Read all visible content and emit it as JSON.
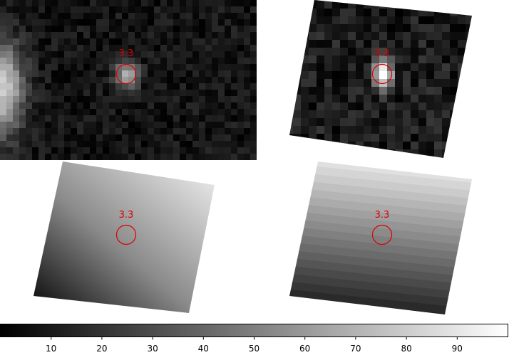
{
  "colors": {
    "marker": "#dd0000",
    "background": "#ffffff"
  },
  "panels": [
    {
      "name": "top-left",
      "shape": "noise-cutout",
      "peak": 0.62,
      "marker_label": "3.3"
    },
    {
      "name": "top-right",
      "shape": "noise-rotated",
      "peak": 1.0,
      "marker_label": "3.3"
    },
    {
      "name": "bottom-left",
      "shape": "gradient-diagonal",
      "marker_label": "3.3"
    },
    {
      "name": "bottom-right",
      "shape": "gradient-horizontal-bands",
      "marker_label": "3.3"
    }
  ],
  "colorbar": {
    "range": [
      0,
      100
    ],
    "ticks": [
      "10",
      "20",
      "30",
      "40",
      "50",
      "60",
      "70",
      "80",
      "90"
    ]
  }
}
